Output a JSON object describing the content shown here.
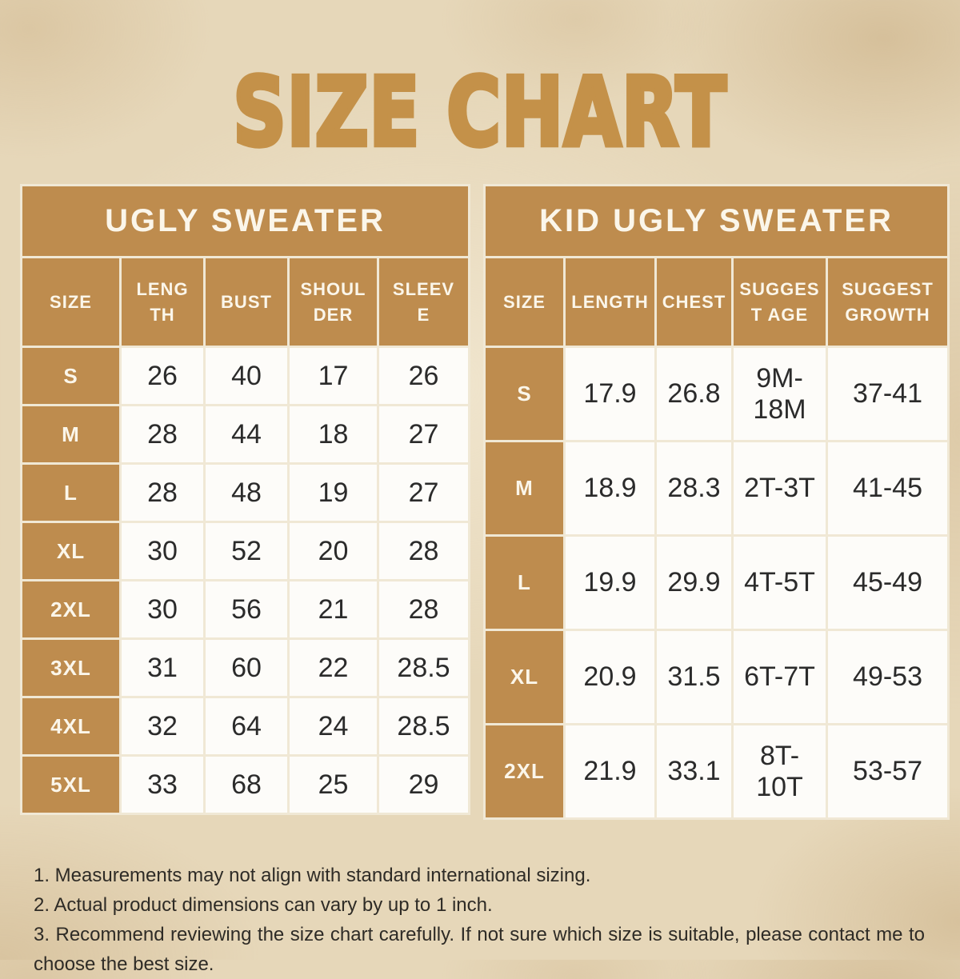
{
  "title": "SIZE CHART",
  "tables": [
    {
      "title": "UGLY SWEATER",
      "columns": [
        "SIZE",
        "LENG\nTH",
        "BUST",
        "SHOUL\nDER",
        "SLEEV\nE"
      ],
      "rows": [
        {
          "size": "S",
          "values": [
            "26",
            "40",
            "17",
            "26"
          ]
        },
        {
          "size": "M",
          "values": [
            "28",
            "44",
            "18",
            "27"
          ]
        },
        {
          "size": "L",
          "values": [
            "28",
            "48",
            "19",
            "27"
          ]
        },
        {
          "size": "XL",
          "values": [
            "30",
            "52",
            "20",
            "28"
          ]
        },
        {
          "size": "2XL",
          "values": [
            "30",
            "56",
            "21",
            "28"
          ]
        },
        {
          "size": "3XL",
          "values": [
            "31",
            "60",
            "22",
            "28.5"
          ]
        },
        {
          "size": "4XL",
          "values": [
            "32",
            "64",
            "24",
            "28.5"
          ]
        },
        {
          "size": "5XL",
          "values": [
            "33",
            "68",
            "25",
            "29"
          ]
        }
      ]
    },
    {
      "title": "KID UGLY SWEATER",
      "columns": [
        "SIZE",
        "LENGTH",
        "CHEST",
        "SUGGES\nT AGE",
        "SUGGEST\nGROWTH"
      ],
      "rows": [
        {
          "size": "S",
          "values": [
            "17.9",
            "26.8",
            "9M-18M",
            "37-41"
          ]
        },
        {
          "size": "M",
          "values": [
            "18.9",
            "28.3",
            "2T-3T",
            "41-45"
          ]
        },
        {
          "size": "L",
          "values": [
            "19.9",
            "29.9",
            "4T-5T",
            "45-49"
          ]
        },
        {
          "size": "XL",
          "values": [
            "20.9",
            "31.5",
            "6T-7T",
            "49-53"
          ]
        },
        {
          "size": "2XL",
          "values": [
            "21.9",
            "33.1",
            "8T-10T",
            "53-57"
          ]
        }
      ]
    }
  ],
  "notes": [
    "1. Measurements may not align with standard international sizing.",
    "2. Actual product dimensions can vary by up to 1 inch.",
    "3. Recommend reviewing the size chart carefully. If not sure which size is suitable, please contact me to choose the best size."
  ],
  "colors": {
    "accent_gold": "#C49149",
    "table_header_brown": "#BE8C4E",
    "cell_border_cream": "#F0E8D5",
    "cell_background": "#FDFCF9",
    "page_background": "#E6D7B9",
    "header_text": "#FBF6EA",
    "body_text": "#2B2B2B"
  },
  "chart_data": [
    {
      "type": "table",
      "title": "UGLY SWEATER",
      "columns": [
        "SIZE",
        "LENGTH",
        "BUST",
        "SHOULDER",
        "SLEEVE"
      ],
      "rows": [
        [
          "S",
          26,
          40,
          17,
          26
        ],
        [
          "M",
          28,
          44,
          18,
          27
        ],
        [
          "L",
          28,
          48,
          19,
          27
        ],
        [
          "XL",
          30,
          52,
          20,
          28
        ],
        [
          "2XL",
          30,
          56,
          21,
          28
        ],
        [
          "3XL",
          31,
          60,
          22,
          28.5
        ],
        [
          "4XL",
          32,
          64,
          24,
          28.5
        ],
        [
          "5XL",
          33,
          68,
          25,
          29
        ]
      ]
    },
    {
      "type": "table",
      "title": "KID UGLY SWEATER",
      "columns": [
        "SIZE",
        "LENGTH",
        "CHEST",
        "SUGGEST AGE",
        "SUGGEST GROWTH"
      ],
      "rows": [
        [
          "S",
          17.9,
          26.8,
          "9M-18M",
          "37-41"
        ],
        [
          "M",
          18.9,
          28.3,
          "2T-3T",
          "41-45"
        ],
        [
          "L",
          19.9,
          29.9,
          "4T-5T",
          "45-49"
        ],
        [
          "XL",
          20.9,
          31.5,
          "6T-7T",
          "49-53"
        ],
        [
          "2XL",
          21.9,
          33.1,
          "8T-10T",
          "53-57"
        ]
      ]
    }
  ]
}
